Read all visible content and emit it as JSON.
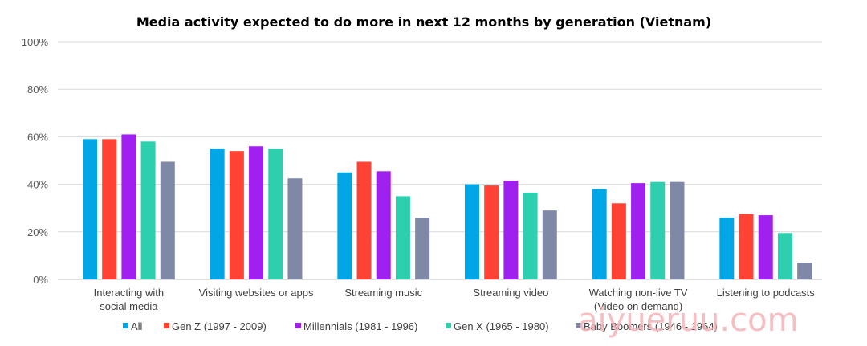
{
  "chart_data": {
    "type": "bar",
    "title": "Media activity expected to do more in next 12 months by generation (Vietnam)",
    "xlabel": "",
    "ylabel": "",
    "ylim": [
      0,
      100
    ],
    "yticks": [
      "0%",
      "20%",
      "40%",
      "60%",
      "80%",
      "100%"
    ],
    "categories": [
      [
        "Interacting with",
        "social media"
      ],
      [
        "Visiting websites or apps"
      ],
      [
        "Streaming music"
      ],
      [
        "Streaming video"
      ],
      [
        "Watching non-live TV",
        "(Video on demand)"
      ],
      [
        "Listening to podcasts"
      ]
    ],
    "series": [
      {
        "name": "All",
        "color": "#00a6e6",
        "values": [
          59,
          55,
          45,
          40,
          38,
          26
        ]
      },
      {
        "name": "Gen Z (1997 - 2009)",
        "color": "#ff4233",
        "values": [
          59,
          54,
          49.5,
          39.5,
          32,
          27.5
        ]
      },
      {
        "name": "Millennials (1981 - 1996)",
        "color": "#a020f0",
        "values": [
          61,
          56,
          45.5,
          41.5,
          40.5,
          27
        ]
      },
      {
        "name": "Gen X (1965 - 1980)",
        "color": "#2ecfae",
        "values": [
          58,
          55,
          35,
          36.5,
          41,
          19.5
        ]
      },
      {
        "name": "Baby Boomers (1946 - 1964)",
        "color": "#8088a8",
        "values": [
          49.5,
          42.5,
          26,
          29,
          41,
          7
        ]
      }
    ],
    "grid": true,
    "legend": "bottom"
  },
  "watermark": "aiyueruu.com"
}
